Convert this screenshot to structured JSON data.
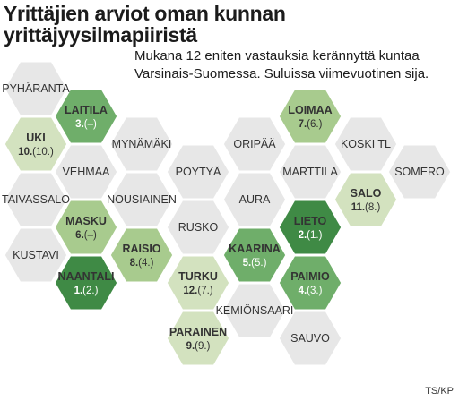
{
  "title_line1": "Yrittäjien arviot oman kunnan",
  "title_line2": "yrittäjyysilmapiiristä",
  "subtitle": "Mukana 12 eniten vastauksia kerännyttä kuntaa Varsinais-Suomessa. Suluissa viimevuotinen sija.",
  "credit": "TS/KP",
  "colors": {
    "gray": "#e7e7e7",
    "light_green": "#d3e2bf",
    "mid_green": "#a8cb8e",
    "green": "#6fae6a",
    "dark_green": "#3f8a45",
    "text_dark": "#333333",
    "text_light": "#ffffff"
  },
  "municipalities": [
    {
      "name": "PYHÄRANTA",
      "rank": "",
      "tier": "gray"
    },
    {
      "name": "LAITILA",
      "rank": "3.(–)",
      "tier": "green"
    },
    {
      "name": "UKI",
      "rank": "10.(10.)",
      "tier": "light_green"
    },
    {
      "name": "MYNÄMÄKI",
      "rank": "",
      "tier": "gray"
    },
    {
      "name": "VEHMAA",
      "rank": "",
      "tier": "gray"
    },
    {
      "name": "PÖYTYÄ",
      "rank": "",
      "tier": "gray"
    },
    {
      "name": "TAIVASSALO",
      "rank": "",
      "tier": "gray"
    },
    {
      "name": "NOUSIAINEN",
      "rank": "",
      "tier": "gray"
    },
    {
      "name": "MASKU",
      "rank": "6.(–)",
      "tier": "mid_green"
    },
    {
      "name": "RUSKO",
      "rank": "",
      "tier": "gray"
    },
    {
      "name": "KUSTAVI",
      "rank": "",
      "tier": "gray"
    },
    {
      "name": "RAISIO",
      "rank": "8.(4.)",
      "tier": "mid_green"
    },
    {
      "name": "NAANTALI",
      "rank": "1.(2.)",
      "tier": "dark_green"
    },
    {
      "name": "TURKU",
      "rank": "12.(7.)",
      "tier": "light_green"
    },
    {
      "name": "PARAINEN",
      "rank": "9.(9.)",
      "tier": "light_green"
    },
    {
      "name": "LOIMAA",
      "rank": "7.(6.)",
      "tier": "mid_green"
    },
    {
      "name": "ORIPÄÄ",
      "rank": "",
      "tier": "gray"
    },
    {
      "name": "KOSKI TL",
      "rank": "",
      "tier": "gray"
    },
    {
      "name": "MARTTILA",
      "rank": "",
      "tier": "gray"
    },
    {
      "name": "SOMERO",
      "rank": "",
      "tier": "gray"
    },
    {
      "name": "AURA",
      "rank": "",
      "tier": "gray"
    },
    {
      "name": "SALO",
      "rank": "11.(8.)",
      "tier": "light_green"
    },
    {
      "name": "LIETO",
      "rank": "2.(1.)",
      "tier": "dark_green"
    },
    {
      "name": "KAARINA",
      "rank": "5.(5.)",
      "tier": "green"
    },
    {
      "name": "PAIMIO",
      "rank": "4.(3.)",
      "tier": "green"
    },
    {
      "name": "KEMIÖNSAARI",
      "rank": "",
      "tier": "gray"
    },
    {
      "name": "SAUVO",
      "rank": "",
      "tier": "gray"
    }
  ]
}
